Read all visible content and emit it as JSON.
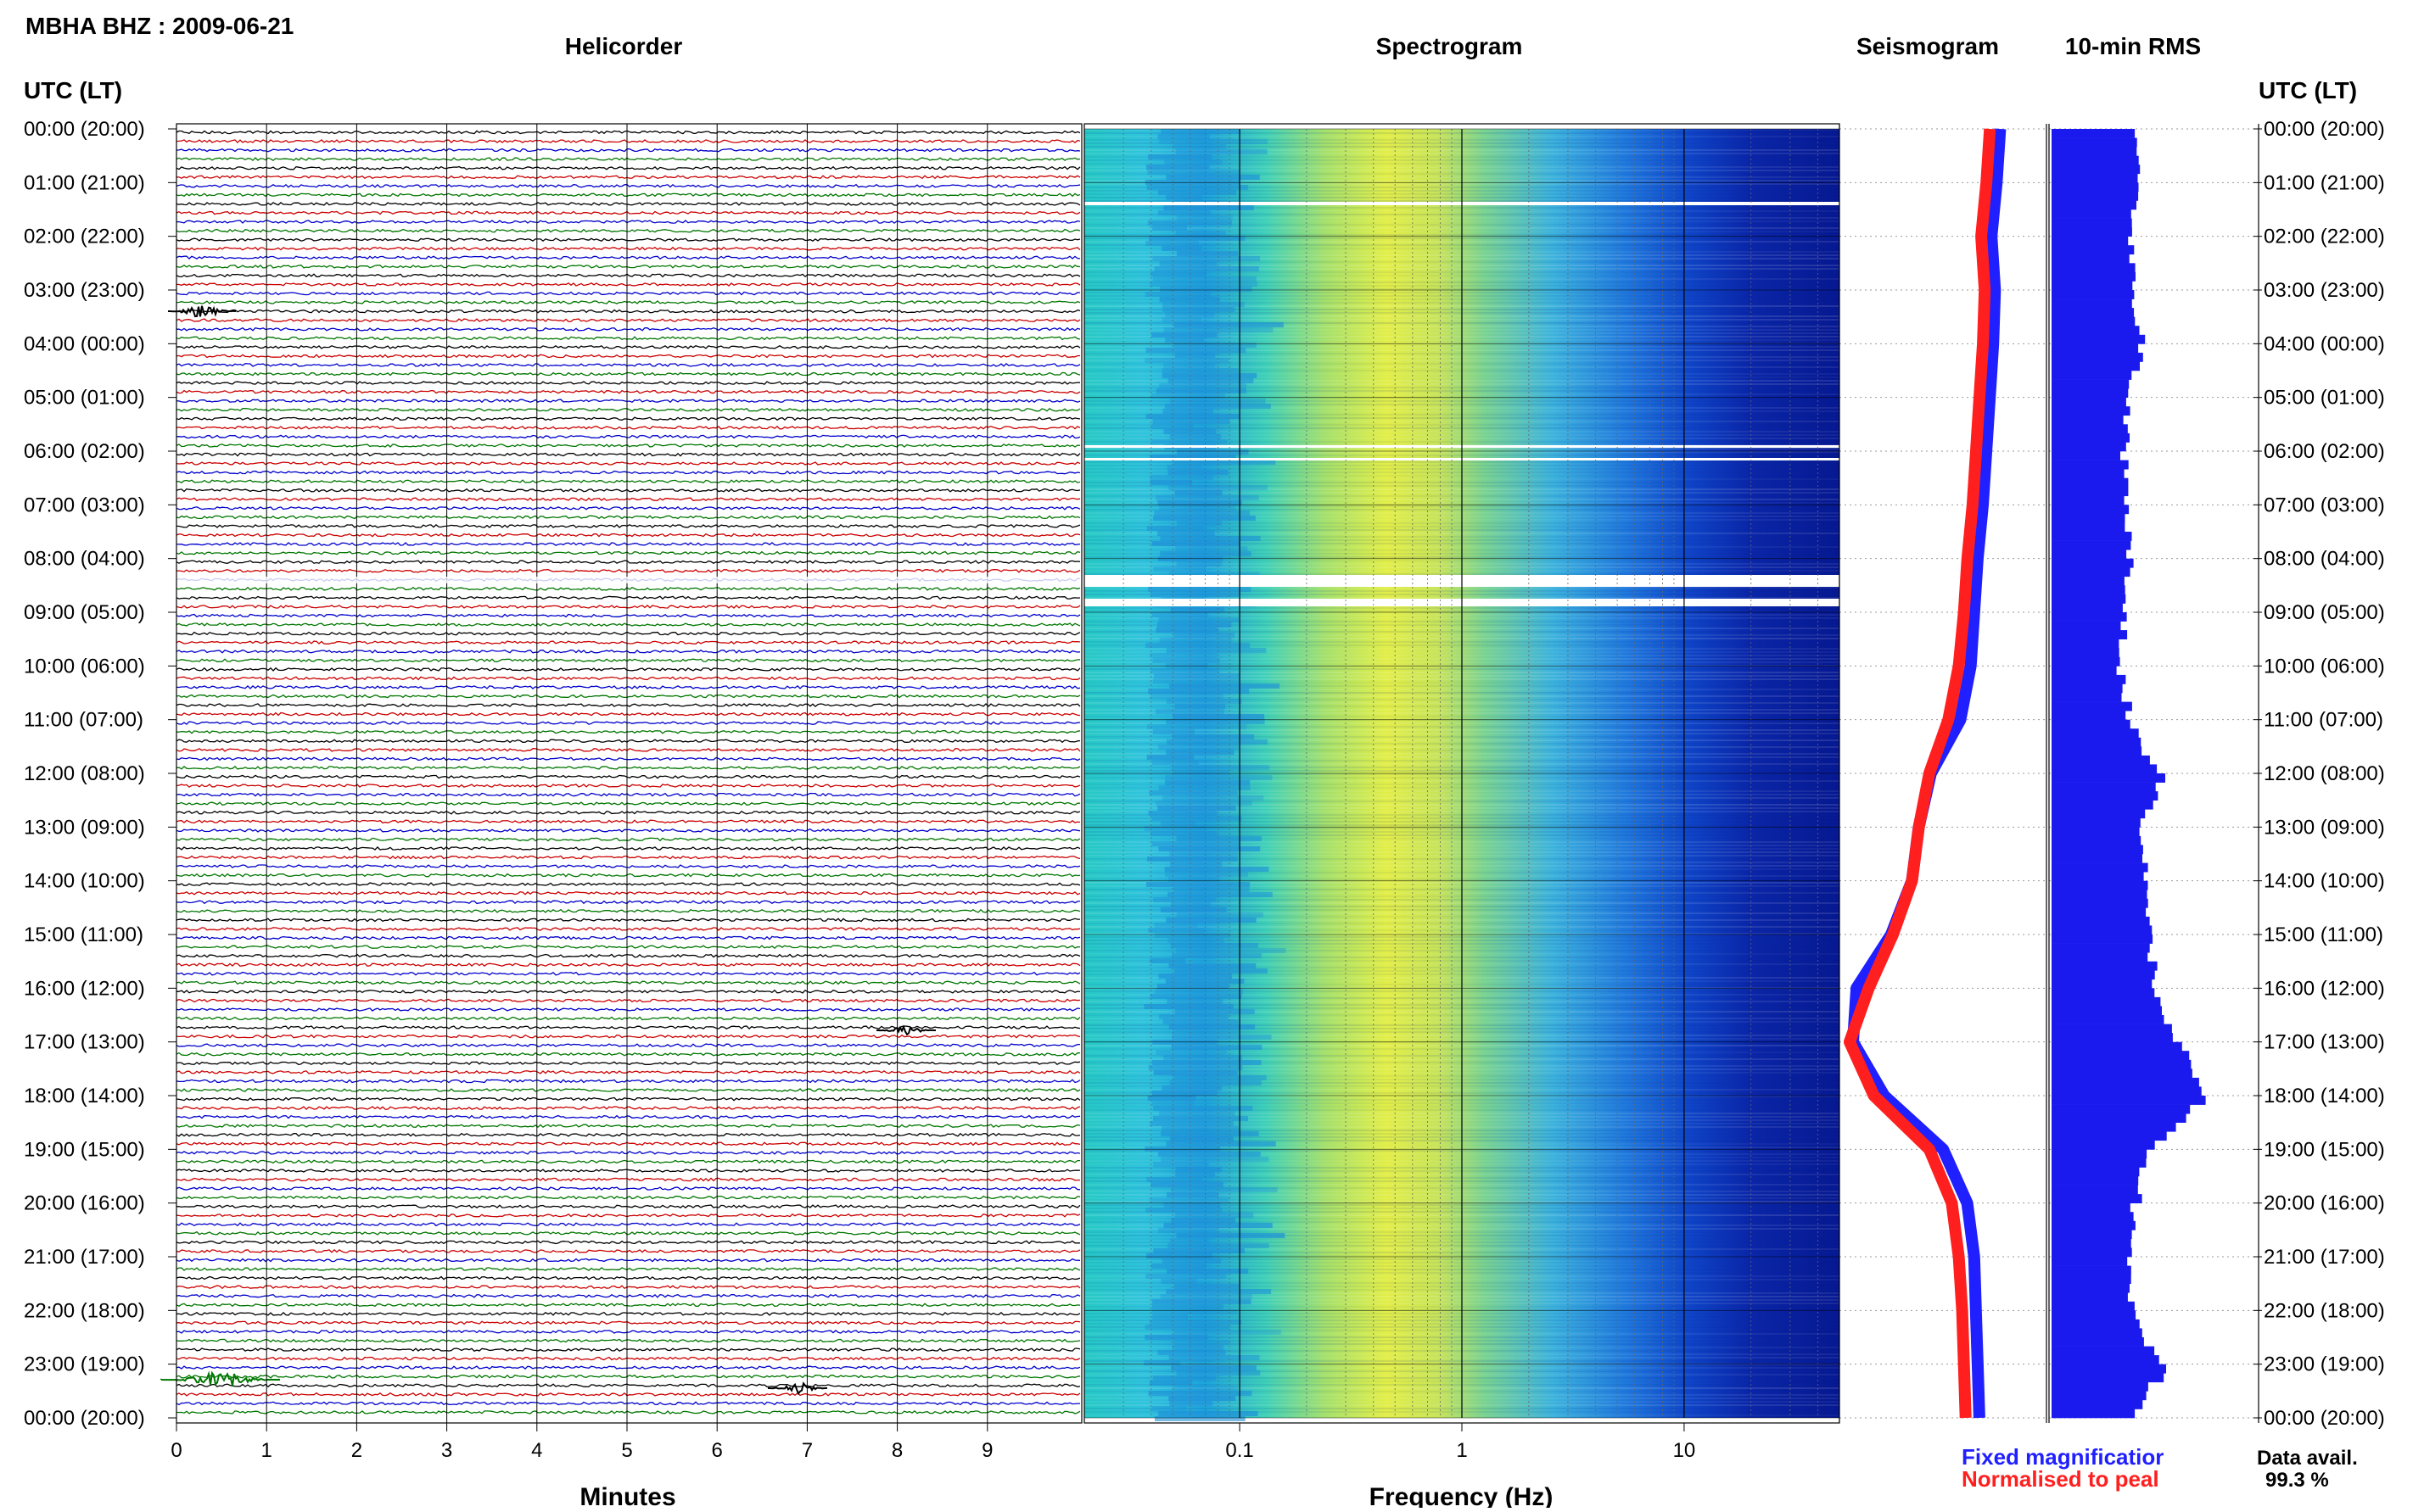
{
  "header": {
    "station": "MBHA BHZ : 2009-06-21",
    "utc_lt_left": "UTC (LT)",
    "utc_lt_right": "UTC (LT)"
  },
  "panels": {
    "helicorder": "Helicorder",
    "spectrogram": "Spectrogram",
    "seismogram": "Seismogram",
    "rms": "10-min RMS"
  },
  "axes": {
    "minutes_label": "Minutes",
    "frequency_label": "Frequency (Hz)",
    "minute_ticks": [
      "0",
      "1",
      "2",
      "3",
      "4",
      "5",
      "6",
      "7",
      "8",
      "9"
    ],
    "freq_ticks": [
      "0.1",
      "1",
      "10"
    ]
  },
  "legend": {
    "fixed": "Fixed magnificatior",
    "normalised": "Normalised to peal",
    "fixed_color": "#1f1fff",
    "normalised_color": "#ff1f1f"
  },
  "availability": {
    "label": "Data avail.",
    "value": "99.3 %"
  },
  "time_labels": [
    "00:00 (20:00)",
    "01:00 (21:00)",
    "02:00 (22:00)",
    "03:00 (23:00)",
    "04:00 (00:00)",
    "05:00 (01:00)",
    "06:00 (02:00)",
    "07:00 (03:00)",
    "08:00 (04:00)",
    "09:00 (05:00)",
    "10:00 (06:00)",
    "11:00 (07:00)",
    "12:00 (08:00)",
    "13:00 (09:00)",
    "14:00 (10:00)",
    "15:00 (11:00)",
    "16:00 (12:00)",
    "17:00 (13:00)",
    "18:00 (14:00)",
    "19:00 (15:00)",
    "20:00 (16:00)",
    "21:00 (17:00)",
    "22:00 (18:00)",
    "23:00 (19:00)",
    "00:00 (20:00)"
  ],
  "colors": {
    "trace_cycle": [
      "#000000",
      "#cc0000",
      "#0000cc",
      "#007700"
    ],
    "rms_fill": "#1a1aee"
  },
  "chart_data": {
    "type": "heatmap",
    "title": "MBHA BHZ : 2009-06-21",
    "helicorder": {
      "xlabel": "Minutes",
      "xlim": [
        0,
        10
      ],
      "line_minutes": 10,
      "lines": 144
    },
    "spectrogram": {
      "xlabel": "Frequency (Hz)",
      "xscale": "log",
      "xlim": [
        0.02,
        50
      ]
    },
    "seismogram_offset": {
      "hours": [
        0,
        1,
        2,
        3,
        4,
        5,
        6,
        7,
        8,
        9,
        10,
        11,
        12,
        13,
        14,
        15,
        16,
        17,
        18,
        19,
        20,
        21,
        22,
        23,
        24
      ],
      "fixed": [
        0.85,
        0.83,
        0.8,
        0.82,
        0.81,
        0.79,
        0.77,
        0.75,
        0.72,
        0.7,
        0.68,
        0.62,
        0.45,
        0.38,
        0.34,
        0.22,
        0.02,
        0.0,
        0.18,
        0.52,
        0.66,
        0.7,
        0.71,
        0.72,
        0.73
      ],
      "normalised": [
        0.82,
        0.8,
        0.77,
        0.79,
        0.78,
        0.76,
        0.74,
        0.72,
        0.69,
        0.67,
        0.64,
        0.58,
        0.47,
        0.41,
        0.37,
        0.26,
        0.12,
        0.01,
        0.15,
        0.47,
        0.6,
        0.64,
        0.66,
        0.67,
        0.68
      ]
    },
    "rms_10min": {
      "hours": [
        0,
        1,
        2,
        3,
        4,
        5,
        6,
        7,
        8,
        9,
        10,
        11,
        12,
        13,
        14,
        15,
        16,
        17,
        18,
        19,
        20,
        21,
        22,
        23,
        24
      ],
      "values": [
        0.42,
        0.4,
        0.38,
        0.4,
        0.43,
        0.37,
        0.35,
        0.36,
        0.38,
        0.34,
        0.33,
        0.38,
        0.52,
        0.42,
        0.45,
        0.47,
        0.5,
        0.62,
        0.72,
        0.45,
        0.4,
        0.37,
        0.38,
        0.55,
        0.35
      ]
    }
  }
}
